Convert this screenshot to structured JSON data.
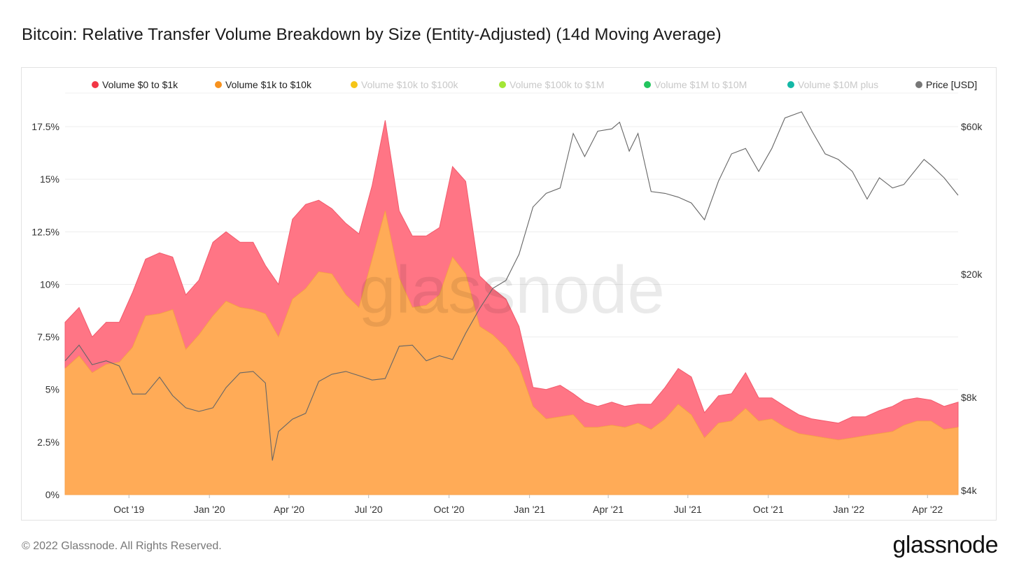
{
  "title": "Bitcoin: Relative Transfer Volume Breakdown by Size (Entity-Adjusted) (14d Moving Average)",
  "footer": "© 2022 Glassnode. All Rights Reserved.",
  "brand": "glassnode",
  "watermark": "glassnode",
  "chart_data": {
    "type": "area",
    "title": "Bitcoin: Relative Transfer Volume Breakdown by Size (Entity-Adjusted) (14d Moving Average)",
    "legend_position": "top",
    "grid": true,
    "legend": [
      {
        "name": "Volume $0 to $1k",
        "color": "#f23645",
        "enabled": true
      },
      {
        "name": "Volume $1k to $10k",
        "color": "#f7921e",
        "enabled": true
      },
      {
        "name": "Volume $10k to $100k",
        "color": "#f5c518",
        "enabled": false
      },
      {
        "name": "Volume $100k to $1M",
        "color": "#a3e635",
        "enabled": false
      },
      {
        "name": "Volume $1M to $10M",
        "color": "#22c55e",
        "enabled": false
      },
      {
        "name": "Volume $10M plus",
        "color": "#14b8a6",
        "enabled": false
      },
      {
        "name": "Price [USD]",
        "color": "#777777",
        "enabled": true
      }
    ],
    "y_left": {
      "ticks": [
        "0%",
        "2.5%",
        "5%",
        "7.5%",
        "10%",
        "12.5%",
        "15%",
        "17.5%"
      ],
      "tick_values": [
        0,
        2.5,
        5,
        7.5,
        10,
        12.5,
        15,
        17.5
      ],
      "range": [
        0,
        18.3
      ]
    },
    "y_right": {
      "ticks": [
        "$4k",
        "$8k",
        "$20k",
        "$60k"
      ],
      "tick_values": [
        4000,
        8000,
        20000,
        60000
      ],
      "scale": "log"
    },
    "x_ticks": [
      "Oct '19",
      "Jan '20",
      "Apr '20",
      "Jul '20",
      "Oct '20",
      "Jan '21",
      "Apr '21",
      "Jul '21",
      "Oct '21",
      "Jan '22",
      "Apr '22"
    ],
    "x_tick_dates": [
      "2019-10-01",
      "2020-01-01",
      "2020-04-01",
      "2020-07-01",
      "2020-10-01",
      "2021-01-01",
      "2021-04-01",
      "2021-07-01",
      "2021-10-01",
      "2022-01-01",
      "2022-04-01"
    ],
    "x_range": [
      "2019-07-20",
      "2022-05-06"
    ],
    "series": [
      {
        "name": "Volume $1k to $10k",
        "dates": [
          "2019-07-20",
          "2019-08-05",
          "2019-08-20",
          "2019-09-05",
          "2019-09-20",
          "2019-10-05",
          "2019-10-20",
          "2019-11-05",
          "2019-11-20",
          "2019-12-05",
          "2019-12-20",
          "2020-01-05",
          "2020-01-20",
          "2020-02-05",
          "2020-02-20",
          "2020-03-05",
          "2020-03-20",
          "2020-04-05",
          "2020-04-20",
          "2020-05-05",
          "2020-05-20",
          "2020-06-05",
          "2020-06-20",
          "2020-07-05",
          "2020-07-20",
          "2020-08-05",
          "2020-08-20",
          "2020-09-05",
          "2020-09-20",
          "2020-10-05",
          "2020-10-20",
          "2020-11-05",
          "2020-11-20",
          "2020-12-05",
          "2020-12-20",
          "2021-01-05",
          "2021-01-20",
          "2021-02-05",
          "2021-02-20",
          "2021-03-05",
          "2021-03-20",
          "2021-04-05",
          "2021-04-20",
          "2021-05-05",
          "2021-05-20",
          "2021-06-05",
          "2021-06-20",
          "2021-07-05",
          "2021-07-20",
          "2021-08-05",
          "2021-08-20",
          "2021-09-05",
          "2021-09-20",
          "2021-10-05",
          "2021-10-20",
          "2021-11-05",
          "2021-11-20",
          "2021-12-05",
          "2021-12-20",
          "2022-01-05",
          "2022-01-20",
          "2022-02-05",
          "2022-02-20",
          "2022-03-05",
          "2022-03-20",
          "2022-04-05",
          "2022-04-20",
          "2022-05-06"
        ],
        "values": [
          6.0,
          6.6,
          5.8,
          6.2,
          6.3,
          7.0,
          8.5,
          8.6,
          8.8,
          6.9,
          7.6,
          8.5,
          9.2,
          8.9,
          8.8,
          8.6,
          7.5,
          9.3,
          9.8,
          10.6,
          10.5,
          9.5,
          8.9,
          11.2,
          13.5,
          10.3,
          8.9,
          9.0,
          9.5,
          11.3,
          10.5,
          8.0,
          7.6,
          7.0,
          6.1,
          4.2,
          3.6,
          3.7,
          3.8,
          3.2,
          3.2,
          3.3,
          3.2,
          3.4,
          3.1,
          3.6,
          4.3,
          3.8,
          2.7,
          3.4,
          3.5,
          4.1,
          3.5,
          3.6,
          3.2,
          2.9,
          2.8,
          2.7,
          2.6,
          2.7,
          2.8,
          2.9,
          3.0,
          3.3,
          3.5,
          3.5,
          3.1,
          3.2
        ]
      },
      {
        "name": "Volume $0 to $1k",
        "dates": [
          "2019-07-20",
          "2019-08-05",
          "2019-08-20",
          "2019-09-05",
          "2019-09-20",
          "2019-10-05",
          "2019-10-20",
          "2019-11-05",
          "2019-11-20",
          "2019-12-05",
          "2019-12-20",
          "2020-01-05",
          "2020-01-20",
          "2020-02-05",
          "2020-02-20",
          "2020-03-05",
          "2020-03-20",
          "2020-04-05",
          "2020-04-20",
          "2020-05-05",
          "2020-05-20",
          "2020-06-05",
          "2020-06-20",
          "2020-07-05",
          "2020-07-20",
          "2020-08-05",
          "2020-08-20",
          "2020-09-05",
          "2020-09-20",
          "2020-10-05",
          "2020-10-20",
          "2020-11-05",
          "2020-11-20",
          "2020-12-05",
          "2020-12-20",
          "2021-01-05",
          "2021-01-20",
          "2021-02-05",
          "2021-02-20",
          "2021-03-05",
          "2021-03-20",
          "2021-04-05",
          "2021-04-20",
          "2021-05-05",
          "2021-05-20",
          "2021-06-05",
          "2021-06-20",
          "2021-07-05",
          "2021-07-20",
          "2021-08-05",
          "2021-08-20",
          "2021-09-05",
          "2021-09-20",
          "2021-10-05",
          "2021-10-20",
          "2021-11-05",
          "2021-11-20",
          "2021-12-05",
          "2021-12-20",
          "2022-01-05",
          "2022-01-20",
          "2022-02-05",
          "2022-02-20",
          "2022-03-05",
          "2022-03-20",
          "2022-04-05",
          "2022-04-20",
          "2022-05-06"
        ],
        "values": [
          2.2,
          2.3,
          1.7,
          2.0,
          1.9,
          2.6,
          2.7,
          2.9,
          2.5,
          2.6,
          2.6,
          3.5,
          3.3,
          3.1,
          3.2,
          2.3,
          2.5,
          3.8,
          4.0,
          3.4,
          3.1,
          3.4,
          3.5,
          3.5,
          4.3,
          3.2,
          3.4,
          3.3,
          3.2,
          4.3,
          4.4,
          2.4,
          2.2,
          2.3,
          1.9,
          0.9,
          1.4,
          1.5,
          1.0,
          1.2,
          1.0,
          1.1,
          1.0,
          0.9,
          1.2,
          1.5,
          1.7,
          1.8,
          1.2,
          1.3,
          1.3,
          1.7,
          1.1,
          1.0,
          1.0,
          0.9,
          0.8,
          0.8,
          0.8,
          1.0,
          0.9,
          1.1,
          1.2,
          1.2,
          1.1,
          1.0,
          1.1,
          1.2
        ]
      },
      {
        "name": "Price [USD]",
        "dates": [
          "2019-07-20",
          "2019-08-05",
          "2019-08-20",
          "2019-09-05",
          "2019-09-20",
          "2019-10-05",
          "2019-10-20",
          "2019-11-05",
          "2019-11-20",
          "2019-12-05",
          "2019-12-20",
          "2020-01-05",
          "2020-01-20",
          "2020-02-05",
          "2020-02-20",
          "2020-03-05",
          "2020-03-13",
          "2020-03-20",
          "2020-04-05",
          "2020-04-20",
          "2020-05-05",
          "2020-05-20",
          "2020-06-05",
          "2020-06-20",
          "2020-07-05",
          "2020-07-20",
          "2020-08-05",
          "2020-08-20",
          "2020-09-05",
          "2020-09-20",
          "2020-10-05",
          "2020-10-20",
          "2020-11-05",
          "2020-11-20",
          "2020-12-05",
          "2020-12-20",
          "2021-01-05",
          "2021-01-20",
          "2021-02-05",
          "2021-02-20",
          "2021-03-05",
          "2021-03-20",
          "2021-04-05",
          "2021-04-14",
          "2021-04-25",
          "2021-05-05",
          "2021-05-20",
          "2021-06-05",
          "2021-06-20",
          "2021-07-05",
          "2021-07-20",
          "2021-08-05",
          "2021-08-20",
          "2021-09-05",
          "2021-09-20",
          "2021-10-05",
          "2021-10-20",
          "2021-11-08",
          "2021-11-20",
          "2021-12-05",
          "2021-12-20",
          "2022-01-05",
          "2022-01-22",
          "2022-02-05",
          "2022-02-20",
          "2022-03-05",
          "2022-03-28",
          "2022-04-05",
          "2022-04-20",
          "2022-05-06"
        ],
        "values": [
          10500,
          11800,
          10200,
          10500,
          10100,
          8200,
          8200,
          9300,
          8100,
          7400,
          7200,
          7400,
          8600,
          9600,
          9700,
          8900,
          5000,
          6200,
          6800,
          7100,
          9000,
          9500,
          9700,
          9400,
          9100,
          9200,
          11700,
          11800,
          10500,
          10900,
          10600,
          12900,
          15500,
          18000,
          19100,
          23200,
          33000,
          36500,
          38000,
          57000,
          48000,
          58000,
          59000,
          62000,
          50000,
          57000,
          37000,
          36500,
          35500,
          34000,
          30000,
          40000,
          49000,
          51000,
          43000,
          51000,
          64000,
          67000,
          58000,
          49000,
          47000,
          43000,
          35000,
          41000,
          38000,
          39000,
          47000,
          45000,
          41000,
          36000
        ]
      }
    ]
  }
}
